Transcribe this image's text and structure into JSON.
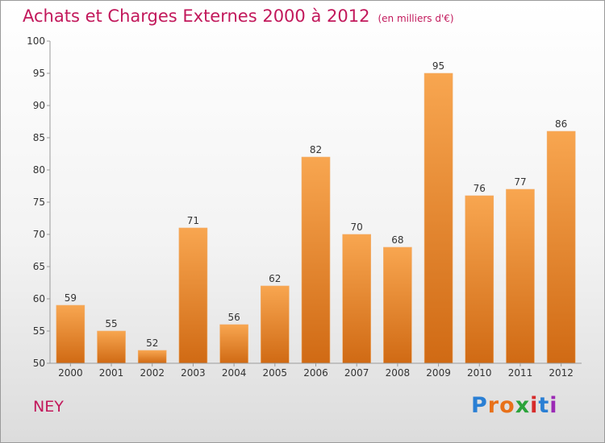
{
  "title": "Achats et Charges Externes 2000 à 2012",
  "unit_label": "(en milliers d'€)",
  "commune": "NEY",
  "logo": {
    "text": "Proxiti",
    "letters": [
      "P",
      "r",
      "o",
      "x",
      "i",
      "t",
      "i"
    ],
    "colors": [
      "#2a7fd4",
      "#e8711a",
      "#e8711a",
      "#2ba33a",
      "#d62b2b",
      "#2a7fd4",
      "#9c2ab5"
    ]
  },
  "colors": {
    "bar_top": "#f8a650",
    "bar_bottom": "#d06a14",
    "title": "#c2185b"
  },
  "chart_data": {
    "type": "bar",
    "categories": [
      "2000",
      "2001",
      "2002",
      "2003",
      "2004",
      "2005",
      "2006",
      "2007",
      "2008",
      "2009",
      "2010",
      "2011",
      "2012"
    ],
    "values": [
      59,
      55,
      52,
      71,
      56,
      62,
      82,
      70,
      68,
      95,
      76,
      77,
      86
    ],
    "ylim": [
      50,
      100
    ],
    "yticks": [
      50,
      55,
      60,
      65,
      70,
      75,
      80,
      85,
      90,
      95,
      100
    ],
    "grid": false,
    "legend": "none"
  }
}
